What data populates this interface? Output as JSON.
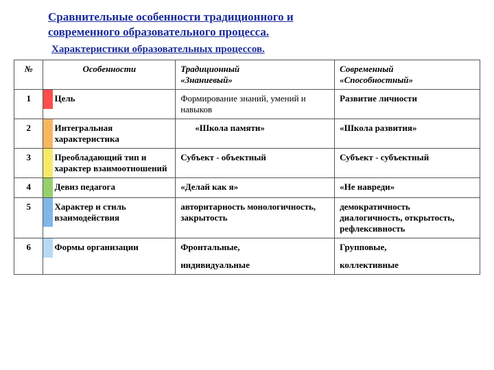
{
  "title_line1": "Сравнительные особенности традиционного и",
  "title_line2": "современного образовательного процесса.",
  "subtitle": "Характеристики образовательных процессов.",
  "title_color": "#1a2a9a",
  "title_fontsize": 17,
  "subtitle_fontsize": 15,
  "header": {
    "num": "№",
    "feat": "Особенности",
    "trad1": "Традиционный",
    "trad2": "«Знаниевый»",
    "mod1": "Современный",
    "mod2": "«Способностный»"
  },
  "body_fontsize": 13,
  "stripe_width": 14,
  "rows": [
    {
      "num": "1",
      "feat": "Цель",
      "stripe_color": "#ff4d4d",
      "trad": "Формирование знаний, умений и навыков",
      "mod": "Развитие личности",
      "trad_bold": false,
      "mod_bold": true
    },
    {
      "num": "2",
      "feat": "Интегральная характеристика",
      "stripe_color": "#f5b760",
      "trad": "«Школа памяти»",
      "mod": "«Школа развития»",
      "trad_bold": true,
      "mod_bold": true,
      "trad_pad": true
    },
    {
      "num": "3",
      "feat": "Преобладающий тип и характер взаимоотношений",
      "stripe_color": "#f5e96a",
      "trad": "Субъект - объектный",
      "mod": "Субъект - субъектный",
      "trad_bold": true,
      "mod_bold": true
    },
    {
      "num": "4",
      "feat": "Девиз педагога",
      "stripe_color": "#96cf6c",
      "trad": "«Делай как я»",
      "mod": "«Не навреди»",
      "trad_bold": true,
      "mod_bold": true
    },
    {
      "num": "5",
      "feat": "Характер и стиль взаимодействия",
      "stripe_color": "#7fb7e8",
      "trad": "авторитарность монологичность, закрытость",
      "mod": "демократичность диалогичность, открытость, рефлексивность",
      "trad_bold": true,
      "mod_bold": true
    },
    {
      "num": "6",
      "feat": "Формы организации",
      "stripe_color": "#b9d9f2",
      "trad": "Фронтальные, индивидуальные",
      "mod": "Групповые, коллективные",
      "trad_bold": true,
      "mod_bold": true,
      "spaced": true
    }
  ]
}
